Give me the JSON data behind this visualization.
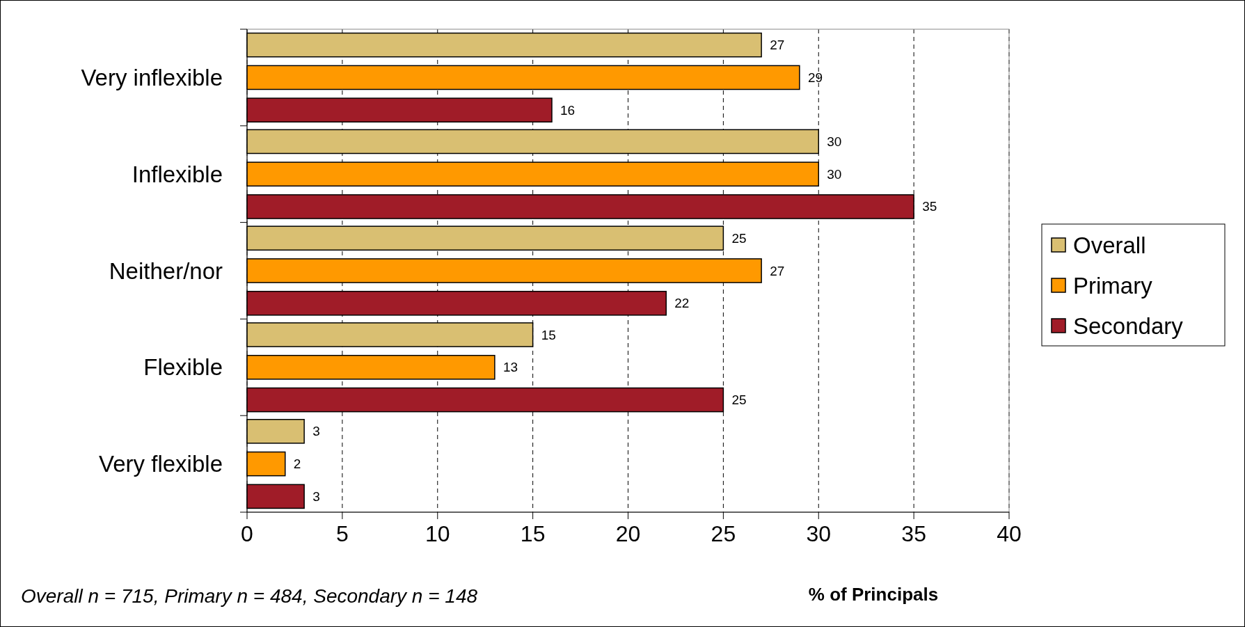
{
  "chart_data": {
    "type": "bar",
    "orientation": "horizontal",
    "xlabel": "% of Principals",
    "categories": [
      "Very inflexible",
      "Inflexible",
      "Neither/nor",
      "Flexible",
      "Very flexible"
    ],
    "series": [
      {
        "name": "Overall",
        "color": "#d9bf72",
        "values": [
          27,
          30,
          25,
          15,
          3
        ]
      },
      {
        "name": "Primary",
        "color": "#ff9900",
        "values": [
          29,
          30,
          27,
          13,
          2
        ]
      },
      {
        "name": "Secondary",
        "color": "#a01c28",
        "values": [
          16,
          35,
          22,
          25,
          3
        ]
      }
    ],
    "xlim": [
      0,
      40
    ],
    "xticks": [
      0,
      5,
      10,
      15,
      20,
      25,
      30,
      35,
      40
    ],
    "grid": "x",
    "legend": "right",
    "data_labels": true,
    "annotations": [
      "Overall n = 715, Primary n = 484, Secondary n = 148"
    ]
  }
}
